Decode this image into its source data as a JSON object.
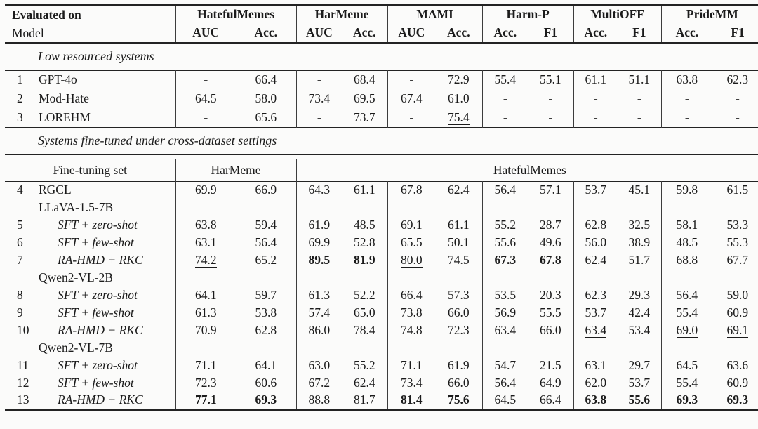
{
  "table": {
    "header": {
      "row_label_line1": "Evaluated on",
      "row_label_line2": "Model",
      "groups": [
        {
          "name": "HatefulMemes",
          "metrics": [
            "AUC",
            "Acc."
          ]
        },
        {
          "name": "HarMeme",
          "metrics": [
            "AUC",
            "Acc."
          ]
        },
        {
          "name": "MAMI",
          "metrics": [
            "AUC",
            "Acc."
          ]
        },
        {
          "name": "Harm-P",
          "metrics": [
            "Acc.",
            "F1"
          ]
        },
        {
          "name": "MultiOFF",
          "metrics": [
            "Acc.",
            "F1"
          ]
        },
        {
          "name": "PrideMM",
          "metrics": [
            "Acc.",
            "F1"
          ]
        }
      ]
    },
    "sections": [
      {
        "title": "Low resourced systems",
        "rows": [
          {
            "kind": "model",
            "num": "1",
            "model": "GPT-4o",
            "cells": [
              "-",
              "66.4",
              "-",
              "68.4",
              "-",
              "72.9",
              "55.4",
              "55.1",
              "61.1",
              "51.1",
              "63.8",
              "62.3"
            ]
          },
          {
            "kind": "model",
            "num": "2",
            "model": "Mod-Hate",
            "cells": [
              "64.5",
              "58.0",
              "73.4",
              "69.5",
              "67.4",
              "61.0",
              "-",
              "-",
              "-",
              "-",
              "-",
              "-"
            ]
          },
          {
            "kind": "model",
            "num": "3",
            "model": "LOREHM",
            "cells": [
              "-",
              "65.6",
              "-",
              "73.7",
              "-",
              "75.4",
              "-",
              "-",
              "-",
              "-",
              "-",
              "-"
            ],
            "underline": [
              5
            ]
          }
        ]
      },
      {
        "title": "Systems fine-tuned under cross-dataset settings",
        "subheader": {
          "label": "Fine-tuning set",
          "harmeme_span": "HarMeme",
          "hatefulmemes_span": "HatefulMemes"
        },
        "rows": [
          {
            "kind": "model",
            "num": "4",
            "model": "RGCL",
            "cells": [
              "69.9",
              "66.9",
              "64.3",
              "61.1",
              "67.8",
              "62.4",
              "56.4",
              "57.1",
              "53.7",
              "45.1",
              "59.8",
              "61.5"
            ],
            "underline": [
              1
            ]
          },
          {
            "kind": "group",
            "num": "",
            "model": "LLaVA-1.5-7B"
          },
          {
            "kind": "method",
            "num": "5",
            "model": "SFT + zero-shot",
            "cells": [
              "63.8",
              "59.4",
              "61.9",
              "48.5",
              "69.1",
              "61.1",
              "55.2",
              "28.7",
              "62.8",
              "32.5",
              "58.1",
              "53.3"
            ]
          },
          {
            "kind": "method",
            "num": "6",
            "model": "SFT + few-shot",
            "cells": [
              "63.1",
              "56.4",
              "69.9",
              "52.8",
              "65.5",
              "50.1",
              "55.6",
              "49.6",
              "56.0",
              "38.9",
              "48.5",
              "55.3"
            ]
          },
          {
            "kind": "method",
            "num": "7",
            "model": "RA-HMD + RKC",
            "cells": [
              "74.2",
              "65.2",
              "89.5",
              "81.9",
              "80.0",
              "74.5",
              "67.3",
              "67.8",
              "62.4",
              "51.7",
              "68.8",
              "67.7"
            ],
            "underline": [
              0,
              4
            ],
            "bold": [
              2,
              3,
              6,
              7
            ]
          },
          {
            "kind": "group",
            "num": "",
            "model": "Qwen2-VL-2B"
          },
          {
            "kind": "method",
            "num": "8",
            "model": "SFT + zero-shot",
            "cells": [
              "64.1",
              "59.7",
              "61.3",
              "52.2",
              "66.4",
              "57.3",
              "53.5",
              "20.3",
              "62.3",
              "29.3",
              "56.4",
              "59.0"
            ]
          },
          {
            "kind": "method",
            "num": "9",
            "model": "SFT + few-shot",
            "cells": [
              "61.3",
              "53.8",
              "57.4",
              "65.0",
              "73.8",
              "66.0",
              "56.9",
              "55.5",
              "53.7",
              "42.4",
              "55.4",
              "60.9"
            ]
          },
          {
            "kind": "method",
            "num": "10",
            "model": "RA-HMD + RKC",
            "cells": [
              "70.9",
              "62.8",
              "86.0",
              "78.4",
              "74.8",
              "72.3",
              "63.4",
              "66.0",
              "63.4",
              "53.4",
              "69.0",
              "69.1"
            ],
            "underline": [
              8,
              10,
              11
            ]
          },
          {
            "kind": "group",
            "num": "",
            "model": "Qwen2-VL-7B"
          },
          {
            "kind": "method",
            "num": "11",
            "model": "SFT + zero-shot",
            "cells": [
              "71.1",
              "64.1",
              "63.0",
              "55.2",
              "71.1",
              "61.9",
              "54.7",
              "21.5",
              "63.1",
              "29.7",
              "64.5",
              "63.6"
            ]
          },
          {
            "kind": "method",
            "num": "12",
            "model": "SFT + few-shot",
            "cells": [
              "72.3",
              "60.6",
              "67.2",
              "62.4",
              "73.4",
              "66.0",
              "56.4",
              "64.9",
              "62.0",
              "53.7",
              "55.4",
              "60.9"
            ],
            "underline": [
              9
            ]
          },
          {
            "kind": "method",
            "num": "13",
            "model": "RA-HMD + RKC",
            "cells": [
              "77.1",
              "69.3",
              "88.8",
              "81.7",
              "81.4",
              "75.6",
              "64.5",
              "66.4",
              "63.8",
              "55.6",
              "69.3",
              "69.3"
            ],
            "bold": [
              0,
              1,
              4,
              5,
              8,
              9,
              10,
              11
            ],
            "underline": [
              2,
              3,
              6,
              7
            ]
          }
        ]
      }
    ]
  }
}
